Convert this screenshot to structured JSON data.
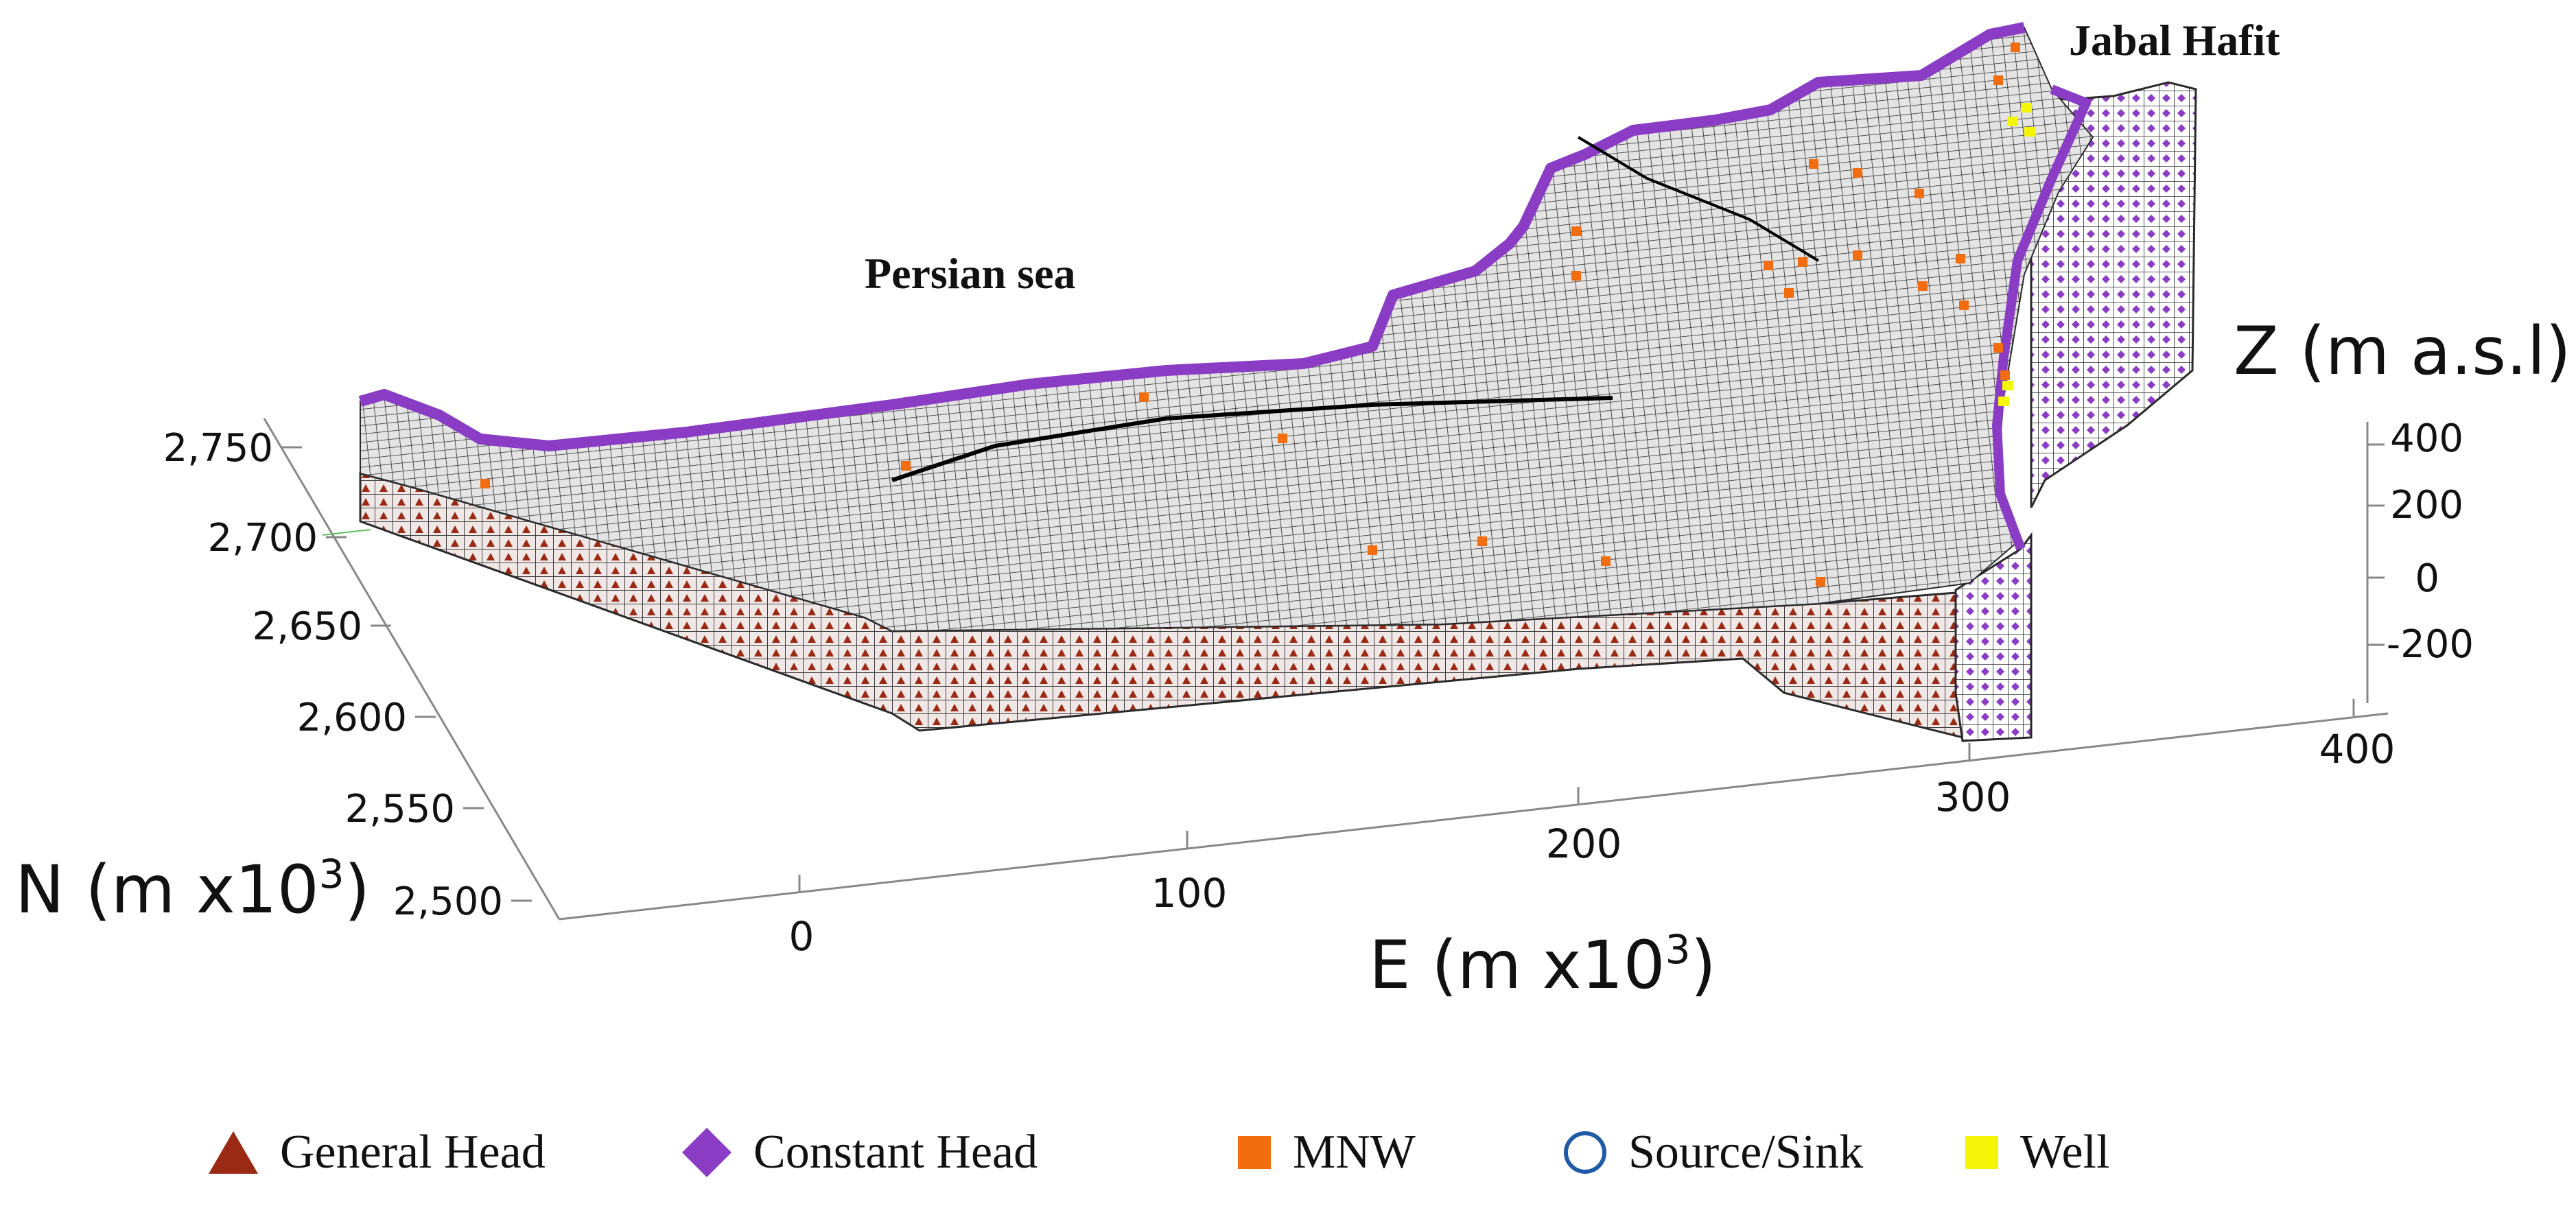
{
  "annotations": {
    "persian_sea": "Persian sea",
    "jabal_hafit": "Jabal Hafit"
  },
  "axes": {
    "n": {
      "label": "N (m x10",
      "sup": "3",
      "close": ")",
      "ticks": [
        "2,750",
        "2,700",
        "2,650",
        "2,600",
        "2,550",
        "2,500"
      ]
    },
    "e": {
      "label": "E (m x10",
      "sup": "3",
      "close": ")",
      "ticks": [
        "0",
        "100",
        "200",
        "300",
        "400"
      ]
    },
    "z": {
      "label": "Z (m a.s.l)",
      "ticks": [
        "400",
        "200",
        "0",
        "-200"
      ]
    }
  },
  "legend": [
    {
      "label": "General Head",
      "color": "#9b2a14",
      "icon": "triangle-icon"
    },
    {
      "label": "Constant Head",
      "color": "#8a3cc4",
      "icon": "diamond-icon"
    },
    {
      "label": "MNW",
      "color": "#f26d0f",
      "icon": "square-icon"
    },
    {
      "label": "Source/Sink",
      "color": "#1f5aa6",
      "icon": "circle-outline-icon"
    },
    {
      "label": "Well",
      "color": "#f5f50a",
      "icon": "square-icon"
    }
  ],
  "colors": {
    "mesh_top": "#d9d9d9",
    "mesh_line": "#2a2a2a",
    "general_head": "#9b2a14",
    "constant_head": "#8a3cc4",
    "mnw": "#f26d0f",
    "well": "#f5f50a"
  }
}
